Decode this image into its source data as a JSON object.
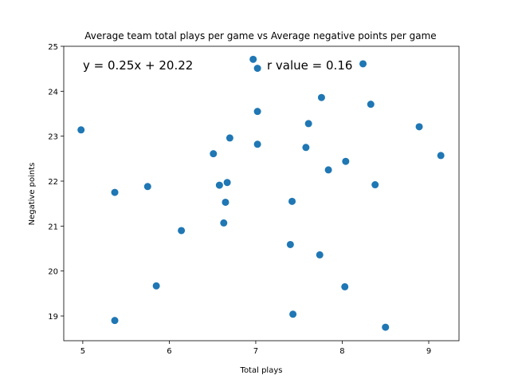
{
  "chart_data": {
    "type": "scatter",
    "title": "Average team total plays per game vs Average negative points per game",
    "xlabel": "Total plays",
    "ylabel": "Negative points",
    "xlim": [
      4.78,
      9.35
    ],
    "ylim": [
      18.45,
      25.0
    ],
    "xticks": [
      "5",
      "6",
      "7",
      "8",
      "9"
    ],
    "xtick_values": [
      5,
      6,
      7,
      8,
      9
    ],
    "yticks": [
      "19",
      "20",
      "21",
      "22",
      "23",
      "24",
      "25"
    ],
    "ytick_values": [
      19,
      20,
      21,
      22,
      23,
      24,
      25
    ],
    "grid": false,
    "annotations": {
      "equation": "y = 0.25x + 20.22",
      "r_value": "r value = 0.16"
    },
    "point_color": "#1f77b4",
    "points": [
      {
        "x": 4.98,
        "y": 23.14
      },
      {
        "x": 5.37,
        "y": 21.75
      },
      {
        "x": 5.37,
        "y": 18.9
      },
      {
        "x": 5.75,
        "y": 21.88
      },
      {
        "x": 5.85,
        "y": 19.67
      },
      {
        "x": 6.14,
        "y": 20.9
      },
      {
        "x": 6.51,
        "y": 22.61
      },
      {
        "x": 6.58,
        "y": 21.91
      },
      {
        "x": 6.63,
        "y": 21.07
      },
      {
        "x": 6.65,
        "y": 21.53
      },
      {
        "x": 6.67,
        "y": 21.97
      },
      {
        "x": 6.7,
        "y": 22.96
      },
      {
        "x": 6.97,
        "y": 24.71
      },
      {
        "x": 7.02,
        "y": 24.51
      },
      {
        "x": 7.02,
        "y": 23.55
      },
      {
        "x": 7.02,
        "y": 22.82
      },
      {
        "x": 7.4,
        "y": 20.59
      },
      {
        "x": 7.42,
        "y": 21.55
      },
      {
        "x": 7.43,
        "y": 19.04
      },
      {
        "x": 7.58,
        "y": 22.75
      },
      {
        "x": 7.61,
        "y": 23.28
      },
      {
        "x": 7.74,
        "y": 20.36
      },
      {
        "x": 7.76,
        "y": 23.86
      },
      {
        "x": 7.84,
        "y": 22.25
      },
      {
        "x": 8.03,
        "y": 19.65
      },
      {
        "x": 8.04,
        "y": 22.44
      },
      {
        "x": 8.24,
        "y": 24.61
      },
      {
        "x": 8.33,
        "y": 23.71
      },
      {
        "x": 8.38,
        "y": 21.92
      },
      {
        "x": 8.5,
        "y": 18.75
      },
      {
        "x": 8.89,
        "y": 23.21
      },
      {
        "x": 9.14,
        "y": 22.57
      }
    ]
  }
}
